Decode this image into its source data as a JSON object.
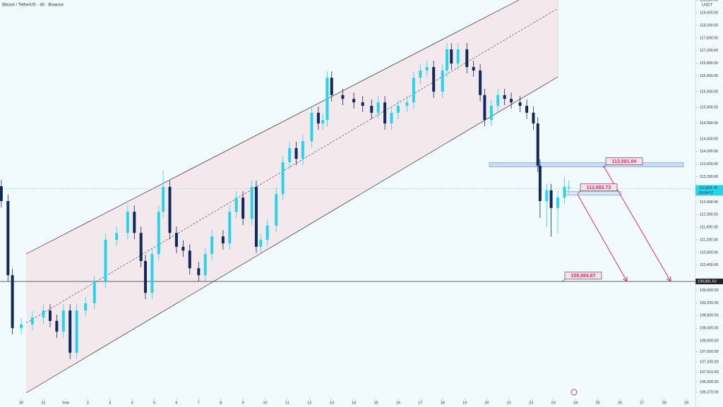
{
  "chart_data": {
    "type": "candlestick",
    "title": "Bitcoin / TetherUS · 4h · Binance",
    "currency": "USDT",
    "up_color": "#26d4ec",
    "down_color": "#10295a",
    "x": [
      -0.9,
      -0.6,
      -0.4,
      0,
      0.5,
      1.0,
      1.3,
      1.6,
      1.9,
      2.2,
      2.5,
      2.9,
      3.3,
      3.8,
      4.3,
      4.8,
      5.1,
      5.4,
      5.6,
      5.9,
      6.2,
      6.4,
      6.7,
      7.0,
      7.3,
      7.6,
      8.0,
      8.3,
      8.6,
      9.1,
      9.4,
      9.7,
      10.0,
      10.4,
      10.6,
      10.8,
      11.1,
      11.5,
      11.8,
      12.1,
      12.4,
      12.7,
      13.1,
      13.4,
      13.6,
      13.8,
      14.0,
      14.5,
      15.0,
      15.4,
      15.8,
      16.1,
      16.4,
      16.7,
      17.0,
      17.4,
      17.7,
      18.0,
      18.3,
      18.6,
      19.0,
      19.2,
      19.4,
      19.7,
      20.1,
      20.4,
      20.7,
      20.9,
      21.2,
      21.5,
      21.8,
      22.1,
      22.5,
      22.8,
      23.1,
      23.3,
      23.4,
      23.7,
      23.9,
      24.2,
      24.5,
      24.7
    ],
    "open": [
      112900,
      112430,
      110080,
      108400,
      108520,
      108740,
      108960,
      108630,
      108290,
      108960,
      107620,
      108960,
      109190,
      109860,
      111200,
      111420,
      112090,
      111420,
      110530,
      109520,
      110750,
      112090,
      112880,
      111420,
      110980,
      110860,
      110300,
      110080,
      110750,
      111310,
      111090,
      112090,
      112540,
      111870,
      112880,
      110980,
      111200,
      111650,
      112650,
      113660,
      114110,
      113770,
      114330,
      115230,
      114890,
      115000,
      116340,
      115790,
      115670,
      115560,
      115450,
      115230,
      115560,
      114890,
      115230,
      115450,
      115560,
      116340,
      116570,
      116680,
      115900,
      116570,
      117240,
      116790,
      117240,
      116680,
      116570,
      115790,
      115000,
      115450,
      115790,
      115670,
      115560,
      115450,
      115230,
      114890,
      113550,
      112430,
      112770,
      112210,
      112540,
      112880
    ],
    "high": [
      113100,
      112630,
      110280,
      108720,
      108940,
      109160,
      109160,
      108830,
      109160,
      109160,
      109160,
      109390,
      110060,
      111400,
      111620,
      112290,
      112290,
      111620,
      110730,
      110950,
      112290,
      113400,
      113080,
      111620,
      111180,
      111060,
      110500,
      110950,
      111510,
      111510,
      112290,
      112740,
      112740,
      113080,
      113080,
      111400,
      111850,
      112850,
      113860,
      114310,
      114310,
      114530,
      115430,
      115430,
      115200,
      116540,
      116540,
      115990,
      115870,
      115760,
      115650,
      115760,
      115760,
      115430,
      115650,
      115760,
      116540,
      116770,
      116880,
      116880,
      116770,
      117440,
      117440,
      117440,
      117440,
      116880,
      116770,
      115990,
      115650,
      115990,
      115990,
      115870,
      115760,
      115650,
      115430,
      115090,
      113750,
      112970,
      112970,
      112740,
      113200,
      113080
    ],
    "low": [
      112230,
      109880,
      108200,
      108200,
      108320,
      108540,
      108430,
      108090,
      108090,
      107420,
      107420,
      108760,
      108990,
      109660,
      111000,
      111220,
      111220,
      110330,
      109320,
      109320,
      110550,
      111890,
      111220,
      110780,
      110660,
      110100,
      109880,
      109880,
      110550,
      110890,
      110890,
      111890,
      111670,
      111670,
      110780,
      110780,
      111000,
      111450,
      112450,
      113460,
      113570,
      113570,
      114130,
      114690,
      114690,
      114800,
      115590,
      115470,
      115360,
      115250,
      115030,
      115030,
      114690,
      114690,
      115030,
      115250,
      115360,
      116140,
      116370,
      115700,
      115700,
      116370,
      116590,
      116590,
      116480,
      116370,
      115590,
      114800,
      114800,
      115250,
      115470,
      115360,
      115250,
      115030,
      114690,
      113350,
      111900,
      111600,
      111300,
      111400,
      112340,
      112680
    ],
    "close": [
      112430,
      110080,
      108400,
      108520,
      108740,
      108960,
      108630,
      108290,
      108960,
      107620,
      108960,
      109190,
      109860,
      111200,
      111420,
      112090,
      111420,
      110530,
      109520,
      110750,
      112090,
      112880,
      111420,
      110980,
      110860,
      110300,
      110080,
      110750,
      111310,
      111090,
      112090,
      112540,
      111870,
      112880,
      110980,
      111200,
      111650,
      112650,
      113660,
      114110,
      113770,
      114330,
      115230,
      114890,
      115000,
      116340,
      115790,
      115670,
      115560,
      115450,
      115230,
      115560,
      114890,
      115230,
      115450,
      115560,
      116340,
      116570,
      116680,
      115900,
      116570,
      117240,
      116790,
      117240,
      116680,
      116570,
      115790,
      115000,
      115450,
      115790,
      115670,
      115560,
      115450,
      115230,
      114890,
      113550,
      112430,
      112770,
      112210,
      112540,
      112880,
      112880
    ],
    "xlim": [
      -0.96,
      30.41
    ],
    "xticks": [
      {
        "value": 0,
        "label": "30"
      },
      {
        "value": 1,
        "label": "31"
      },
      {
        "value": 2,
        "label": "Sep"
      },
      {
        "value": 3,
        "label": "2"
      },
      {
        "value": 4,
        "label": "3"
      },
      {
        "value": 5,
        "label": "4"
      },
      {
        "value": 6,
        "label": "5"
      },
      {
        "value": 7,
        "label": "6"
      },
      {
        "value": 8,
        "label": "7"
      },
      {
        "value": 9,
        "label": "8"
      },
      {
        "value": 10,
        "label": "9"
      },
      {
        "value": 11,
        "label": "10"
      },
      {
        "value": 12,
        "label": "11"
      },
      {
        "value": 13,
        "label": "12"
      },
      {
        "value": 14,
        "label": "13"
      },
      {
        "value": 15,
        "label": "14"
      },
      {
        "value": 16,
        "label": "15"
      },
      {
        "value": 17,
        "label": "16"
      },
      {
        "value": 18,
        "label": "17"
      },
      {
        "value": 19,
        "label": "18"
      },
      {
        "value": 20,
        "label": "19"
      },
      {
        "value": 21,
        "label": "20"
      },
      {
        "value": 22,
        "label": "21"
      },
      {
        "value": 23,
        "label": "22"
      },
      {
        "value": 24,
        "label": "23"
      },
      {
        "value": 25,
        "label": "24"
      },
      {
        "value": 26,
        "label": "25"
      },
      {
        "value": 27,
        "label": "26"
      },
      {
        "value": 28,
        "label": "27"
      },
      {
        "value": 29,
        "label": "28"
      },
      {
        "value": 30,
        "label": "29"
      }
    ],
    "ylim": [
      105900,
      118805
    ],
    "yticks": [
      {
        "value": 118800,
        "label": "118,800.00"
      },
      {
        "value": 118400,
        "label": "118,400.00"
      },
      {
        "value": 118000,
        "label": "118,000.00"
      },
      {
        "value": 117600,
        "label": "117,600.00"
      },
      {
        "value": 117200,
        "label": "117,200.00"
      },
      {
        "value": 116800,
        "label": "116,800.00"
      },
      {
        "value": 116400,
        "label": "116,400.00"
      },
      {
        "value": 115900,
        "label": "115,900.00"
      },
      {
        "value": 115400,
        "label": "115,400.00"
      },
      {
        "value": 114900,
        "label": "114,900.00"
      },
      {
        "value": 114400,
        "label": "114,400.00"
      },
      {
        "value": 114000,
        "label": "114,000.00"
      },
      {
        "value": 113600,
        "label": "113,600.00"
      },
      {
        "value": 113200,
        "label": "113,200.00"
      },
      {
        "value": 112400,
        "label": "112,400.00"
      },
      {
        "value": 112000,
        "label": "112,000.00"
      },
      {
        "value": 111600,
        "label": "111,600.00"
      },
      {
        "value": 111200,
        "label": "111,200.00"
      },
      {
        "value": 110800,
        "label": "110,800.00"
      },
      {
        "value": 110400,
        "label": "110,400.00"
      },
      {
        "value": 109600,
        "label": "109,600.00"
      },
      {
        "value": 109200,
        "label": "109,200.00"
      },
      {
        "value": 108800,
        "label": "108,800.00"
      },
      {
        "value": 108400,
        "label": "108,400.00"
      },
      {
        "value": 108000,
        "label": "108,000.00"
      },
      {
        "value": 107650,
        "label": "107,650.00"
      },
      {
        "value": 107330,
        "label": "107,330.00"
      },
      {
        "value": 107010,
        "label": "107,010.00"
      },
      {
        "value": 106690,
        "label": "106,690.00"
      },
      {
        "value": 106370,
        "label": "106,370.00"
      }
    ],
    "last_price": {
      "value": 112824.78,
      "label": "112,824.78",
      "countdown": "00:04:57"
    },
    "hline": {
      "value": 109881.63,
      "label": "109,881.63"
    },
    "annotations": [
      {
        "value": 113581.04,
        "label": "113,581.04"
      },
      {
        "value": 112682.73,
        "label": "112,682.73"
      },
      {
        "value": 109884.67,
        "label": "109,884.67"
      }
    ]
  }
}
